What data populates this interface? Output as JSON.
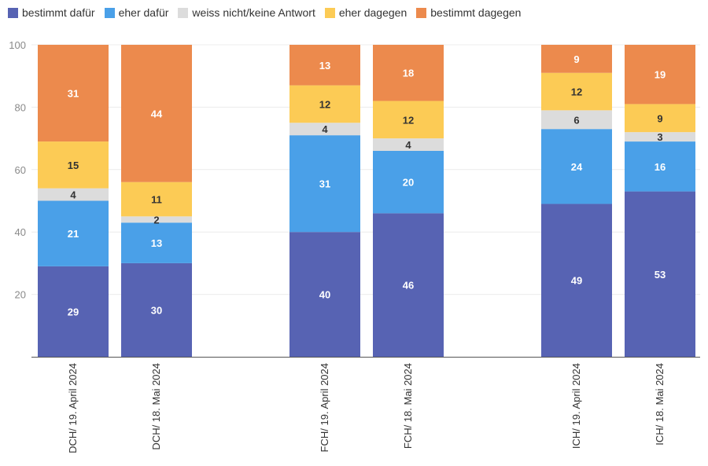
{
  "chart_data": {
    "type": "bar",
    "stacked": true,
    "categories": [
      "DCH/ 19. April 2024",
      "DCH/ 18. Mai 2024",
      "FCH/ 19. April 2024",
      "FCH/ 18. Mai 2024",
      "ICH/ 19. April 2024",
      "ICH/ 18. Mai 2024"
    ],
    "groups": [
      [
        0,
        1
      ],
      [
        2,
        3
      ],
      [
        4,
        5
      ]
    ],
    "series": [
      {
        "name": "bestimmt dafür",
        "color": "#5763b3",
        "label_color": "#ffffff",
        "values": [
          29,
          30,
          40,
          46,
          49,
          53
        ]
      },
      {
        "name": "eher dafür",
        "color": "#4aa0e8",
        "label_color": "#ffffff",
        "values": [
          21,
          13,
          31,
          20,
          24,
          16
        ]
      },
      {
        "name": "weiss nicht/keine Antwort",
        "color": "#dcdcdc",
        "label_color": "#333333",
        "values": [
          4,
          2,
          4,
          4,
          6,
          3
        ]
      },
      {
        "name": "eher dagegen",
        "color": "#fccb55",
        "label_color": "#333333",
        "values": [
          15,
          11,
          12,
          12,
          12,
          9
        ]
      },
      {
        "name": "bestimmt dagegen",
        "color": "#ec8a4d",
        "label_color": "#ffffff",
        "values": [
          31,
          44,
          13,
          18,
          9,
          19
        ]
      }
    ],
    "ylim": [
      0,
      100
    ],
    "yticks": [
      20,
      40,
      60,
      80,
      100
    ],
    "legend_position": "top-left",
    "grid": true,
    "title": "",
    "xlabel": "",
    "ylabel": ""
  }
}
